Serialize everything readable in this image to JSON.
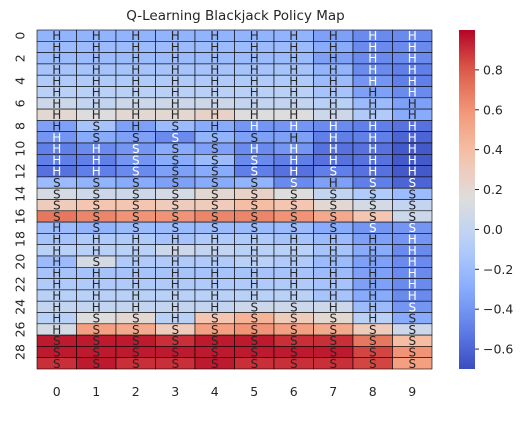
{
  "chart_data": {
    "type": "heatmap",
    "title": "Q-Learning Blackjack Policy Map",
    "xlabel": "",
    "ylabel": "",
    "x": [
      0,
      1,
      2,
      3,
      4,
      5,
      6,
      7,
      8,
      9
    ],
    "y": [
      0,
      1,
      2,
      3,
      4,
      5,
      6,
      7,
      8,
      9,
      10,
      11,
      12,
      13,
      14,
      15,
      16,
      17,
      18,
      19,
      20,
      21,
      22,
      23,
      24,
      25,
      26,
      27,
      28,
      29
    ],
    "x_tick_labels": [
      "0",
      "1",
      "2",
      "3",
      "4",
      "5",
      "6",
      "7",
      "8",
      "9"
    ],
    "y_tick_labels": [
      "0",
      "2",
      "4",
      "6",
      "8",
      "10",
      "12",
      "14",
      "16",
      "18",
      "20",
      "22",
      "24",
      "26",
      "28"
    ],
    "colorbar": {
      "colormap": "coolwarm",
      "vmin": -0.7,
      "vmax": 1.0,
      "tick_values": [
        -0.6,
        -0.4,
        -0.2,
        0.0,
        0.2,
        0.4,
        0.6,
        0.8
      ],
      "tick_labels": [
        "−0.6",
        "−0.4",
        "−0.2",
        "0.0",
        "0.2",
        "0.4",
        "0.6",
        "0.8"
      ]
    },
    "values": [
      [
        -0.25,
        -0.25,
        -0.25,
        -0.25,
        -0.25,
        -0.25,
        -0.25,
        -0.35,
        -0.45,
        -0.45
      ],
      [
        -0.2,
        -0.2,
        -0.2,
        -0.2,
        -0.2,
        -0.2,
        -0.2,
        -0.3,
        -0.45,
        -0.45
      ],
      [
        -0.2,
        -0.2,
        -0.2,
        -0.2,
        -0.2,
        -0.2,
        -0.2,
        -0.35,
        -0.45,
        -0.45
      ],
      [
        -0.15,
        -0.15,
        -0.15,
        -0.15,
        -0.15,
        -0.15,
        -0.15,
        -0.25,
        -0.45,
        -0.5
      ],
      [
        -0.1,
        -0.1,
        -0.1,
        -0.1,
        -0.1,
        -0.1,
        -0.1,
        -0.2,
        -0.4,
        -0.5
      ],
      [
        -0.05,
        -0.05,
        -0.05,
        -0.05,
        -0.05,
        -0.05,
        -0.05,
        -0.15,
        -0.35,
        -0.45
      ],
      [
        0.05,
        0.0,
        0.05,
        0.05,
        0.05,
        0.0,
        0.0,
        -0.05,
        -0.2,
        -0.35
      ],
      [
        0.2,
        0.15,
        0.2,
        0.2,
        0.25,
        0.15,
        0.15,
        0.05,
        -0.1,
        -0.3
      ],
      [
        -0.35,
        -0.15,
        -0.35,
        -0.2,
        -0.3,
        -0.4,
        -0.4,
        -0.45,
        -0.5,
        -0.55
      ],
      [
        -0.4,
        -0.3,
        -0.35,
        -0.45,
        -0.25,
        -0.35,
        -0.35,
        -0.5,
        -0.5,
        -0.6
      ],
      [
        -0.5,
        -0.45,
        -0.4,
        -0.3,
        -0.35,
        -0.45,
        -0.4,
        -0.55,
        -0.55,
        -0.65
      ],
      [
        -0.5,
        -0.5,
        -0.4,
        -0.3,
        -0.2,
        -0.45,
        -0.5,
        -0.55,
        -0.55,
        -0.65
      ],
      [
        -0.55,
        -0.5,
        -0.45,
        -0.35,
        -0.3,
        -0.5,
        -0.55,
        -0.5,
        -0.55,
        -0.65
      ],
      [
        -0.2,
        -0.25,
        -0.3,
        -0.35,
        -0.3,
        -0.25,
        -0.45,
        -0.35,
        -0.5,
        -0.6
      ],
      [
        0.1,
        0.05,
        0.05,
        0.1,
        0.2,
        0.25,
        0.15,
        0.0,
        -0.1,
        -0.2
      ],
      [
        0.3,
        0.35,
        0.35,
        0.3,
        0.3,
        0.4,
        0.35,
        0.2,
        0.1,
        0.0
      ],
      [
        0.7,
        0.65,
        0.6,
        0.6,
        0.65,
        0.65,
        0.6,
        0.5,
        0.35,
        0.05
      ],
      [
        -0.2,
        -0.25,
        -0.2,
        -0.2,
        -0.2,
        -0.2,
        -0.2,
        -0.3,
        -0.4,
        -0.4
      ],
      [
        -0.15,
        -0.1,
        -0.1,
        -0.15,
        -0.1,
        -0.1,
        -0.15,
        -0.2,
        -0.35,
        -0.4
      ],
      [
        -0.05,
        -0.05,
        -0.05,
        0.05,
        0.0,
        -0.05,
        -0.05,
        -0.15,
        -0.3,
        -0.45
      ],
      [
        -0.2,
        0.1,
        -0.1,
        -0.1,
        -0.1,
        -0.05,
        -0.1,
        -0.2,
        -0.35,
        -0.45
      ],
      [
        -0.15,
        -0.15,
        -0.15,
        -0.15,
        -0.15,
        -0.15,
        -0.15,
        -0.2,
        -0.35,
        -0.45
      ],
      [
        -0.1,
        -0.1,
        -0.1,
        -0.1,
        -0.1,
        -0.1,
        -0.1,
        -0.15,
        -0.35,
        -0.45
      ],
      [
        -0.05,
        -0.05,
        -0.05,
        -0.05,
        -0.05,
        -0.05,
        -0.05,
        -0.15,
        -0.3,
        -0.45
      ],
      [
        0.0,
        0.0,
        0.0,
        0.0,
        0.0,
        0.05,
        0.05,
        0.05,
        -0.2,
        -0.4
      ],
      [
        -0.05,
        0.15,
        0.2,
        -0.05,
        0.35,
        0.45,
        0.3,
        0.2,
        -0.05,
        -0.3
      ],
      [
        0.1,
        0.55,
        0.5,
        0.3,
        0.55,
        0.6,
        0.55,
        0.5,
        0.3,
        0.05
      ],
      [
        0.95,
        0.95,
        0.95,
        0.9,
        0.95,
        0.95,
        0.9,
        0.9,
        0.7,
        0.4
      ],
      [
        0.95,
        0.95,
        0.95,
        0.95,
        0.95,
        0.95,
        0.95,
        0.95,
        0.85,
        0.6
      ],
      [
        0.9,
        0.95,
        0.9,
        0.9,
        0.95,
        0.9,
        0.9,
        0.9,
        0.85,
        0.55
      ]
    ],
    "actions": [
      [
        "H",
        "H",
        "H",
        "H",
        "H",
        "H",
        "H",
        "H",
        "H",
        "H"
      ],
      [
        "H",
        "H",
        "H",
        "H",
        "H",
        "H",
        "H",
        "H",
        "H",
        "H"
      ],
      [
        "H",
        "H",
        "H",
        "H",
        "H",
        "H",
        "H",
        "H",
        "H",
        "H"
      ],
      [
        "H",
        "H",
        "H",
        "H",
        "H",
        "H",
        "H",
        "H",
        "H",
        "H"
      ],
      [
        "H",
        "H",
        "H",
        "H",
        "H",
        "H",
        "H",
        "H",
        "H",
        "H"
      ],
      [
        "H",
        "H",
        "H",
        "H",
        "H",
        "H",
        "H",
        "H",
        "H",
        "H"
      ],
      [
        "H",
        "H",
        "H",
        "H",
        "H",
        "H",
        "H",
        "H",
        "H",
        "H"
      ],
      [
        "H",
        "H",
        "H",
        "H",
        "H",
        "H",
        "H",
        "H",
        "H",
        "H"
      ],
      [
        "H",
        "S",
        "H",
        "S",
        "H",
        "H",
        "H",
        "H",
        "H",
        "H"
      ],
      [
        "H",
        "S",
        "S",
        "S",
        "S",
        "S",
        "H",
        "H",
        "H",
        "H"
      ],
      [
        "H",
        "H",
        "S",
        "S",
        "S",
        "H",
        "H",
        "H",
        "H",
        "H"
      ],
      [
        "H",
        "H",
        "S",
        "S",
        "S",
        "S",
        "H",
        "H",
        "H",
        "H"
      ],
      [
        "H",
        "H",
        "S",
        "S",
        "S",
        "S",
        "H",
        "S",
        "H",
        "H"
      ],
      [
        "S",
        "S",
        "S",
        "S",
        "S",
        "S",
        "S",
        "H",
        "S",
        "S"
      ],
      [
        "S",
        "S",
        "S",
        "S",
        "S",
        "S",
        "S",
        "S",
        "S",
        "S"
      ],
      [
        "S",
        "S",
        "S",
        "S",
        "S",
        "S",
        "S",
        "S",
        "S",
        "S"
      ],
      [
        "S",
        "S",
        "S",
        "S",
        "S",
        "S",
        "S",
        "S",
        "S",
        "S"
      ],
      [
        "H",
        "S",
        "S",
        "S",
        "S",
        "S",
        "S",
        "S",
        "S",
        "S"
      ],
      [
        "H",
        "H",
        "H",
        "H",
        "H",
        "H",
        "H",
        "H",
        "H",
        "H"
      ],
      [
        "H",
        "H",
        "H",
        "H",
        "H",
        "H",
        "H",
        "H",
        "H",
        "H"
      ],
      [
        "H",
        "S",
        "H",
        "H",
        "H",
        "H",
        "H",
        "H",
        "H",
        "H"
      ],
      [
        "H",
        "H",
        "H",
        "H",
        "H",
        "H",
        "H",
        "H",
        "H",
        "H"
      ],
      [
        "H",
        "H",
        "H",
        "H",
        "H",
        "H",
        "H",
        "H",
        "H",
        "H"
      ],
      [
        "H",
        "H",
        "H",
        "H",
        "H",
        "H",
        "H",
        "H",
        "H",
        "H"
      ],
      [
        "H",
        "H",
        "H",
        "H",
        "H",
        "S",
        "S",
        "H",
        "H",
        "S"
      ],
      [
        "H",
        "S",
        "S",
        "H",
        "S",
        "S",
        "S",
        "S",
        "H",
        "S"
      ],
      [
        "H",
        "S",
        "S",
        "S",
        "S",
        "S",
        "S",
        "S",
        "S",
        "S"
      ],
      [
        "S",
        "S",
        "S",
        "S",
        "S",
        "S",
        "S",
        "S",
        "S",
        "S"
      ],
      [
        "S",
        "S",
        "S",
        "S",
        "S",
        "S",
        "S",
        "S",
        "S",
        "S"
      ],
      [
        "S",
        "S",
        "S",
        "S",
        "S",
        "S",
        "S",
        "S",
        "S",
        "S"
      ]
    ]
  }
}
